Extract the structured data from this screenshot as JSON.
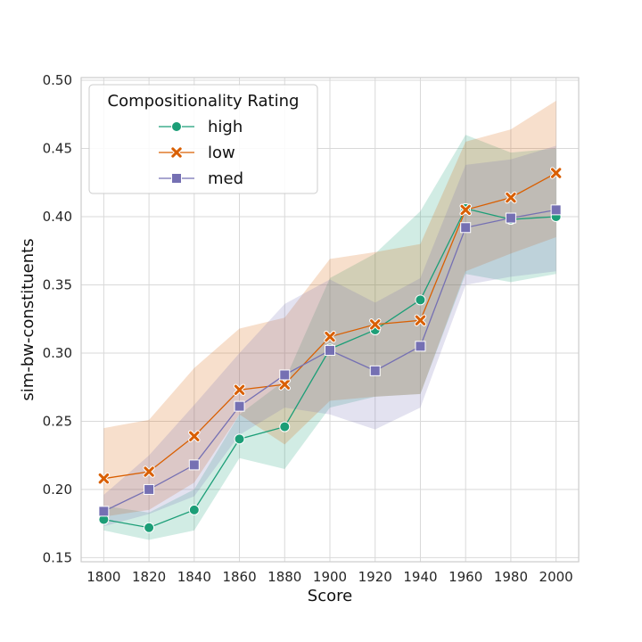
{
  "chart_data": {
    "type": "line",
    "xlabel": "Score",
    "ylabel": "sim-bw-constituents",
    "x": [
      1800,
      1820,
      1840,
      1860,
      1880,
      1900,
      1920,
      1940,
      1960,
      1980,
      2000
    ],
    "xlim": [
      1790,
      2010
    ],
    "ylim": [
      0.147,
      0.502
    ],
    "x_ticks": [
      "1800",
      "1820",
      "1840",
      "1860",
      "1880",
      "1900",
      "1920",
      "1940",
      "1960",
      "1980",
      "2000"
    ],
    "y_ticks": [
      "0.15",
      "0.20",
      "0.25",
      "0.30",
      "0.35",
      "0.40",
      "0.45",
      "0.50"
    ],
    "grid": true,
    "legend": {
      "title": "Compositionality Rating",
      "placement": "top-left"
    },
    "series": [
      {
        "name": "high",
        "color": "#1b9e77",
        "marker": "circle",
        "values": [
          0.178,
          0.172,
          0.185,
          0.237,
          0.246,
          0.303,
          0.317,
          0.339,
          0.406,
          0.398,
          0.4
        ],
        "ci_lower": [
          0.17,
          0.163,
          0.17,
          0.223,
          0.215,
          0.26,
          0.268,
          0.27,
          0.358,
          0.352,
          0.358
        ],
        "ci_upper": [
          0.188,
          0.183,
          0.2,
          0.255,
          0.28,
          0.355,
          0.373,
          0.404,
          0.46,
          0.447,
          0.45
        ]
      },
      {
        "name": "low",
        "color": "#d95f02",
        "marker": "x",
        "values": [
          0.208,
          0.213,
          0.239,
          0.273,
          0.277,
          0.312,
          0.321,
          0.324,
          0.405,
          0.414,
          0.432
        ],
        "ci_lower": [
          0.18,
          0.185,
          0.205,
          0.255,
          0.233,
          0.265,
          0.268,
          0.27,
          0.36,
          0.373,
          0.385
        ],
        "ci_upper": [
          0.245,
          0.251,
          0.289,
          0.318,
          0.326,
          0.369,
          0.374,
          0.38,
          0.455,
          0.464,
          0.485
        ]
      },
      {
        "name": "med",
        "color": "#7570b3",
        "marker": "square",
        "values": [
          0.184,
          0.2,
          0.218,
          0.261,
          0.284,
          0.302,
          0.287,
          0.305,
          0.392,
          0.399,
          0.405
        ],
        "ci_lower": [
          0.173,
          0.182,
          0.195,
          0.24,
          0.26,
          0.255,
          0.244,
          0.26,
          0.35,
          0.356,
          0.36
        ],
        "ci_upper": [
          0.196,
          0.225,
          0.262,
          0.3,
          0.336,
          0.354,
          0.337,
          0.355,
          0.438,
          0.442,
          0.452
        ]
      }
    ]
  }
}
